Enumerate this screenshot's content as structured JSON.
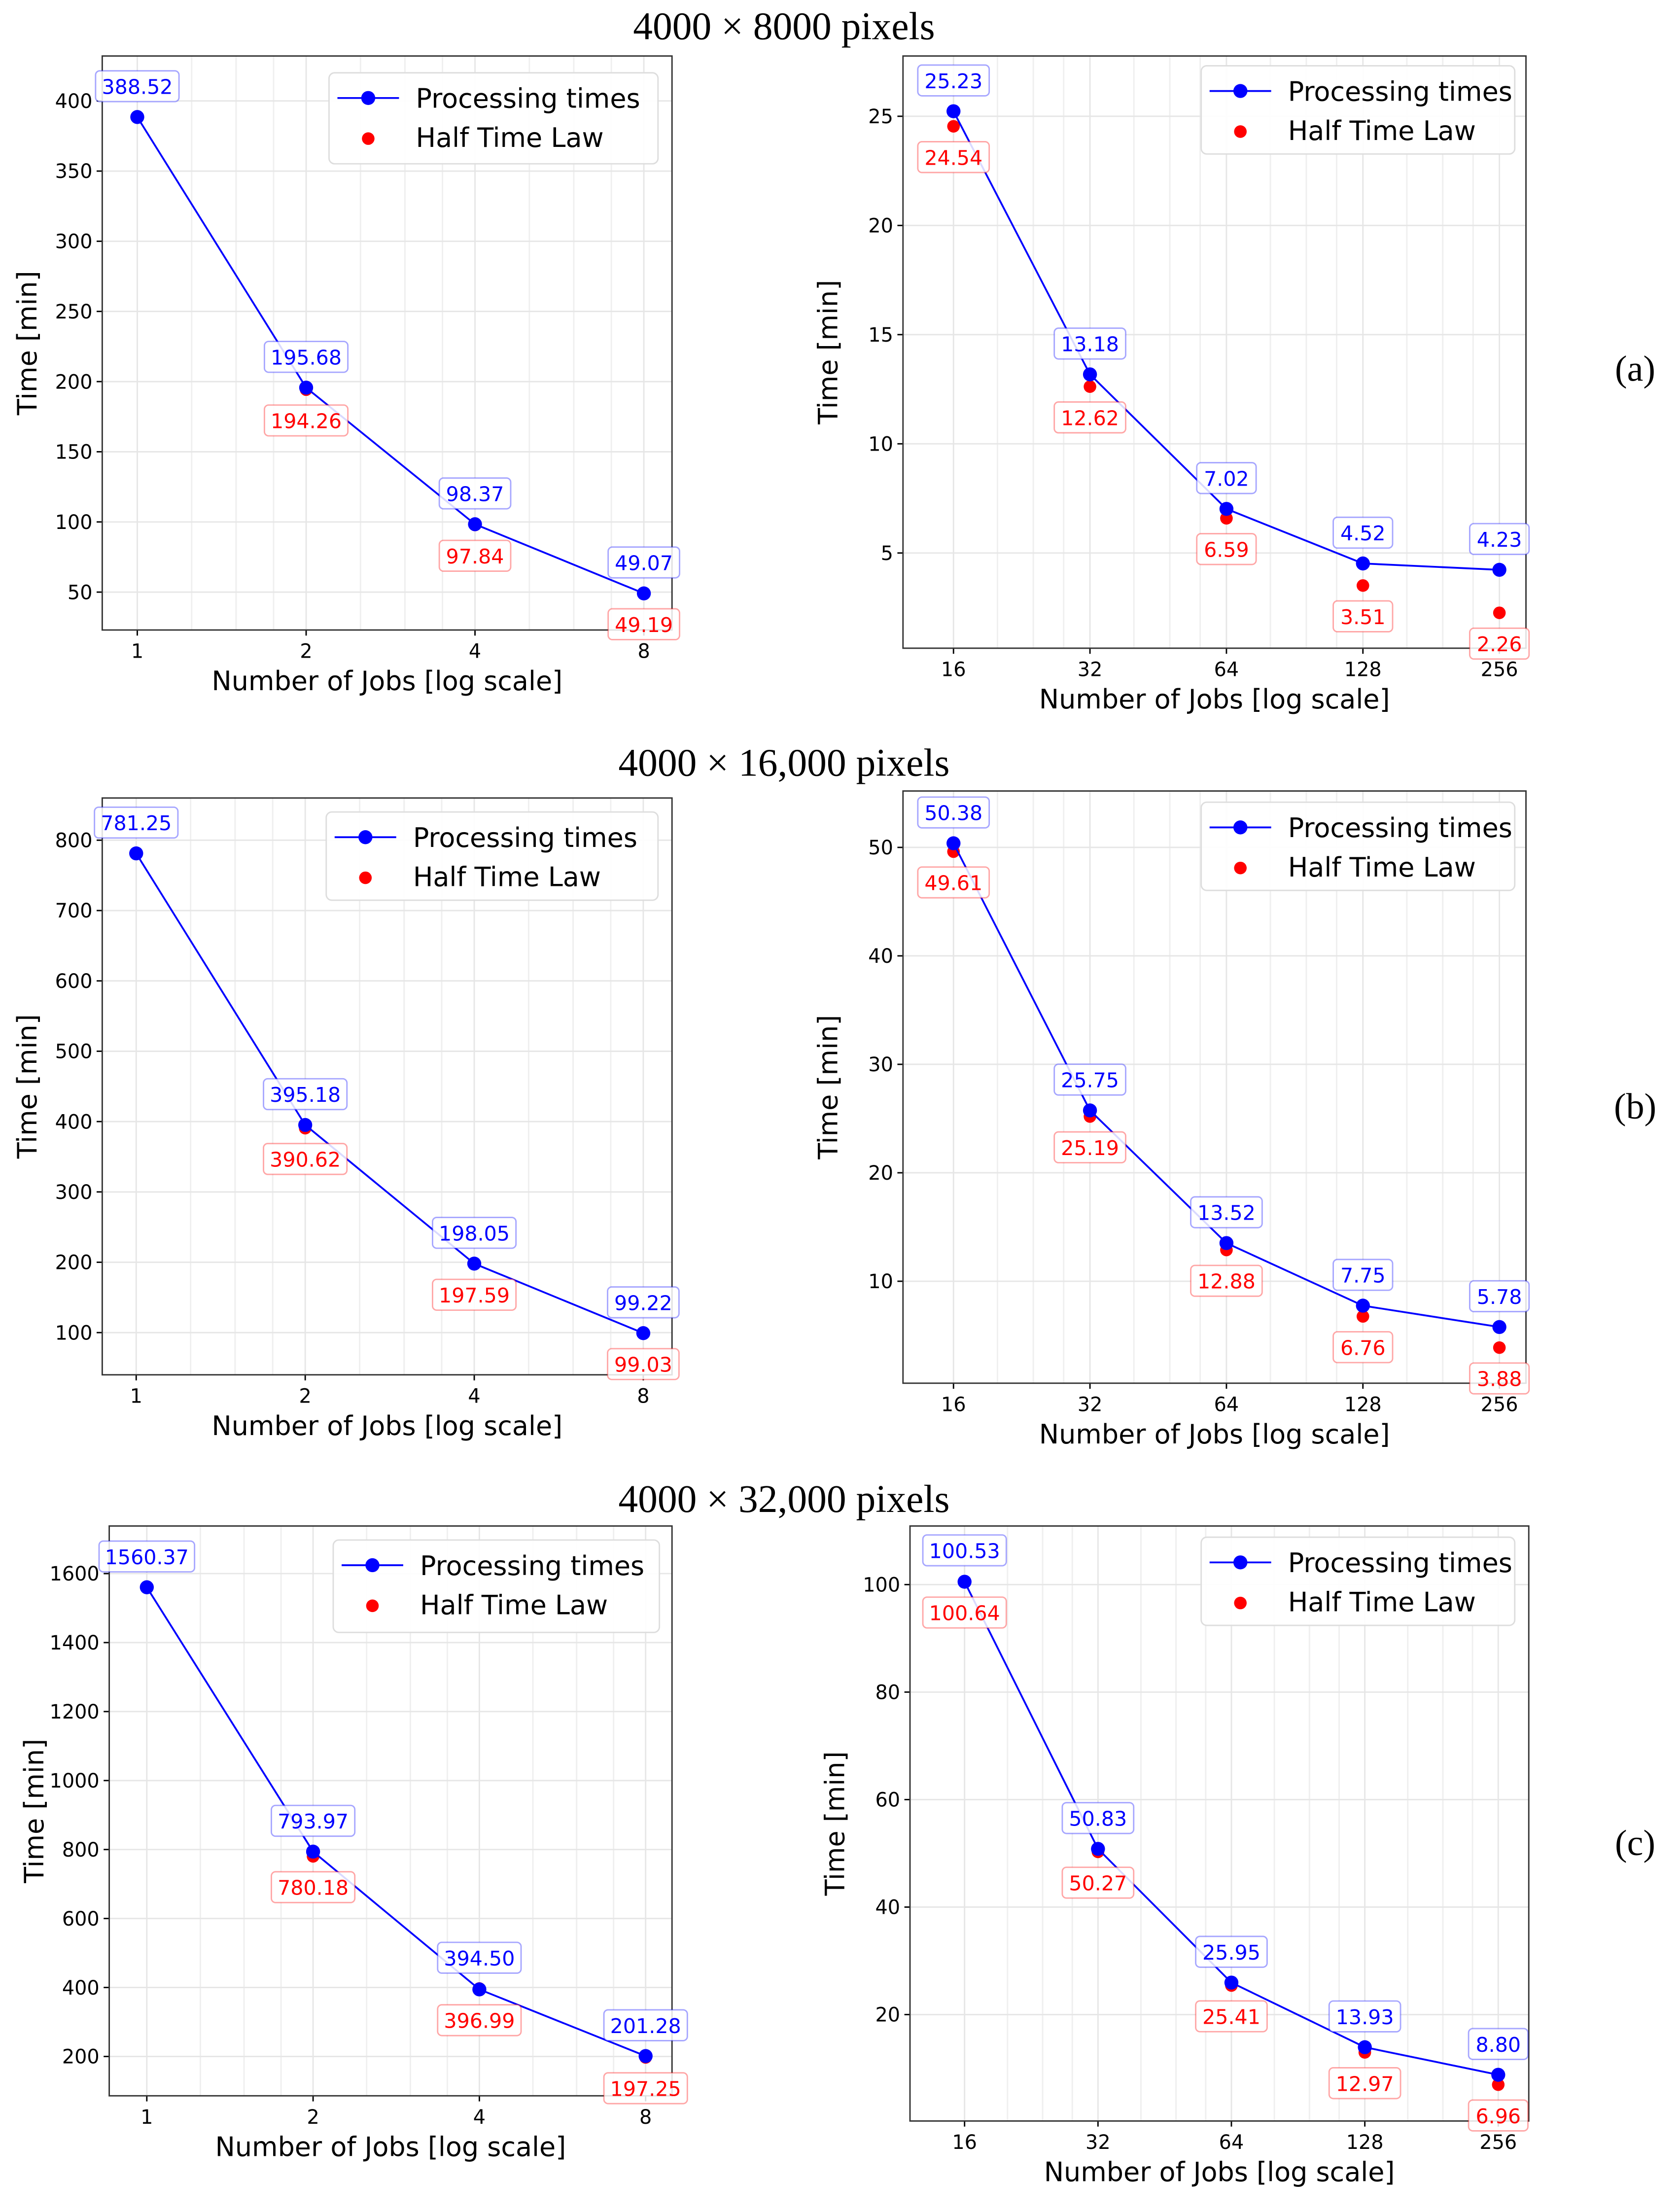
{
  "figure": {
    "rows": [
      {
        "title": "4000 × 8000 pixels",
        "panel_label": "(a)"
      },
      {
        "title": "4000 × 16,000 pixels",
        "panel_label": "(b)"
      },
      {
        "title": "4000 × 32,000 pixels",
        "panel_label": "(c)"
      }
    ]
  },
  "colors": {
    "processing": "#0000ff",
    "half_time": "#ff0000",
    "grid": "#e6e6e6",
    "axis": "#333333"
  },
  "chart_data": [
    {
      "type": "line",
      "row": 0,
      "xlabel": "Number of Jobs [log scale]",
      "ylabel": "Time [min]",
      "xscale": "log2",
      "xlim": [
        0.866,
        8.98
      ],
      "ylim": [
        23,
        432
      ],
      "xticks": [
        1,
        2,
        4,
        8
      ],
      "yticks": [
        50,
        100,
        150,
        200,
        250,
        300,
        350,
        400
      ],
      "legend": [
        "Processing times",
        "Half Time Law"
      ],
      "legend_position": "top-right",
      "grid": true,
      "x": [
        1,
        2,
        4,
        8
      ],
      "series": [
        {
          "name": "Processing times",
          "values": [
            388.52,
            195.68,
            98.37,
            49.07
          ]
        },
        {
          "name": "Half Time Law",
          "x": [
            2,
            4,
            8
          ],
          "values": [
            194.26,
            97.84,
            49.19
          ]
        }
      ]
    },
    {
      "type": "line",
      "row": 0,
      "xlabel": "Number of Jobs [log scale]",
      "ylabel": "Time [min]",
      "xscale": "log2",
      "xlim": [
        12.38,
        293
      ],
      "ylim": [
        0.64,
        27.76
      ],
      "xticks": [
        16,
        32,
        64,
        128,
        256
      ],
      "yticks": [
        5,
        10,
        15,
        20,
        25
      ],
      "legend": [
        "Processing times",
        "Half Time Law"
      ],
      "legend_position": "top-right",
      "grid": true,
      "x": [
        16,
        32,
        64,
        128,
        256
      ],
      "series": [
        {
          "name": "Processing times",
          "values": [
            25.23,
            13.18,
            7.02,
            4.52,
            4.23
          ]
        },
        {
          "name": "Half Time Law",
          "x": [
            16,
            32,
            64,
            128,
            256
          ],
          "values": [
            24.54,
            12.62,
            6.59,
            3.51,
            2.26
          ]
        }
      ]
    },
    {
      "type": "line",
      "row": 1,
      "xlabel": "Number of Jobs [log scale]",
      "ylabel": "Time [min]",
      "xscale": "log2",
      "xlim": [
        0.87,
        9.0
      ],
      "ylim": [
        40,
        860
      ],
      "xticks": [
        1,
        2,
        4,
        8
      ],
      "yticks": [
        100,
        200,
        300,
        400,
        500,
        600,
        700,
        800
      ],
      "legend": [
        "Processing times",
        "Half Time Law"
      ],
      "legend_position": "top-right",
      "grid": true,
      "x": [
        1,
        2,
        4,
        8
      ],
      "series": [
        {
          "name": "Processing times",
          "values": [
            781.25,
            395.18,
            198.05,
            99.22
          ]
        },
        {
          "name": "Half Time Law",
          "x": [
            2,
            4,
            8
          ],
          "values": [
            390.62,
            197.59,
            99.03
          ]
        }
      ]
    },
    {
      "type": "line",
      "row": 1,
      "xlabel": "Number of Jobs [log scale]",
      "ylabel": "Time [min]",
      "xscale": "log2",
      "xlim": [
        12.38,
        293
      ],
      "ylim": [
        0.6,
        55.2
      ],
      "xticks": [
        16,
        32,
        64,
        128,
        256
      ],
      "yticks": [
        10,
        20,
        30,
        40,
        50
      ],
      "legend": [
        "Processing times",
        "Half Time Law"
      ],
      "legend_position": "top-right",
      "grid": true,
      "x": [
        16,
        32,
        64,
        128,
        256
      ],
      "series": [
        {
          "name": "Processing times",
          "values": [
            50.38,
            25.75,
            13.52,
            7.75,
            5.78
          ]
        },
        {
          "name": "Half Time Law",
          "x": [
            16,
            32,
            64,
            128,
            256
          ],
          "values": [
            49.61,
            25.19,
            12.88,
            6.76,
            3.88
          ]
        }
      ]
    },
    {
      "type": "line",
      "row": 2,
      "xlabel": "Number of Jobs [log scale]",
      "ylabel": "Time [min]",
      "xscale": "log2",
      "xlim": [
        0.855,
        8.93
      ],
      "ylim": [
        86,
        1738
      ],
      "xticks": [
        1,
        2,
        4,
        8
      ],
      "yticks": [
        200,
        400,
        600,
        800,
        1000,
        1200,
        1400,
        1600
      ],
      "legend": [
        "Processing times",
        "Half Time Law"
      ],
      "legend_position": "top-right",
      "grid": true,
      "x": [
        1,
        2,
        4,
        8
      ],
      "series": [
        {
          "name": "Processing times",
          "values": [
            1560.37,
            793.97,
            394.5,
            201.28
          ]
        },
        {
          "name": "Half Time Law",
          "x": [
            2,
            4,
            8
          ],
          "values": [
            780.18,
            396.99,
            197.25
          ]
        }
      ]
    },
    {
      "type": "line",
      "row": 2,
      "xlabel": "Number of Jobs [log scale]",
      "ylabel": "Time [min]",
      "xscale": "log2",
      "xlim": [
        12.05,
        300
      ],
      "ylim": [
        0.2,
        110.9
      ],
      "xticks": [
        16,
        32,
        64,
        128,
        256
      ],
      "yticks": [
        20,
        40,
        60,
        80,
        100
      ],
      "legend": [
        "Processing times",
        "Half Time Law"
      ],
      "legend_position": "top-right",
      "grid": true,
      "x": [
        16,
        32,
        64,
        128,
        256
      ],
      "series": [
        {
          "name": "Processing times",
          "values": [
            100.53,
            50.83,
            25.95,
            13.93,
            8.8
          ]
        },
        {
          "name": "Half Time Law",
          "x": [
            16,
            32,
            64,
            128,
            256
          ],
          "values": [
            100.64,
            50.27,
            25.41,
            12.97,
            6.96
          ]
        }
      ]
    }
  ]
}
